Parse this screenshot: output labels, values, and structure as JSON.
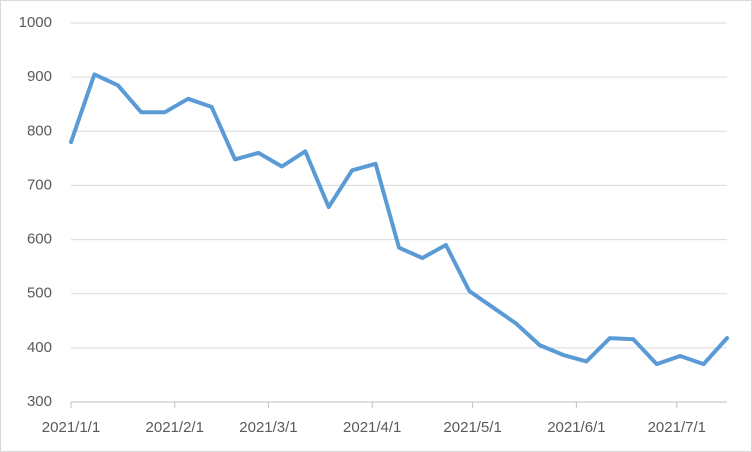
{
  "chart_data": {
    "type": "line",
    "x": [
      "2021/1/1",
      "2021/1/8",
      "2021/1/15",
      "2021/1/22",
      "2021/1/29",
      "2021/2/5",
      "2021/2/12",
      "2021/2/19",
      "2021/2/26",
      "2021/3/5",
      "2021/3/12",
      "2021/3/19",
      "2021/3/26",
      "2021/4/2",
      "2021/4/9",
      "2021/4/16",
      "2021/4/23",
      "2021/4/30",
      "2021/5/7",
      "2021/5/14",
      "2021/5/21",
      "2021/5/28",
      "2021/6/4",
      "2021/6/11",
      "2021/6/18",
      "2021/6/25",
      "2021/7/2",
      "2021/7/9",
      "2021/7/16"
    ],
    "values": [
      780,
      905,
      885,
      835,
      835,
      860,
      845,
      748,
      760,
      735,
      763,
      660,
      728,
      740,
      585,
      566,
      590,
      505,
      475,
      445,
      405,
      387,
      375,
      418,
      416,
      370,
      385,
      370,
      418
    ],
    "color": "#5b9bd5",
    "xlim": [
      "2021/1/1",
      "2021/7/16"
    ],
    "xticks": [
      "2021/1/1",
      "2021/2/1",
      "2021/3/1",
      "2021/4/1",
      "2021/5/1",
      "2021/6/1",
      "2021/7/1"
    ],
    "ylim": [
      300,
      1000
    ],
    "yticks": [
      300,
      400,
      500,
      600,
      700,
      800,
      900,
      1000
    ],
    "grid": true
  }
}
